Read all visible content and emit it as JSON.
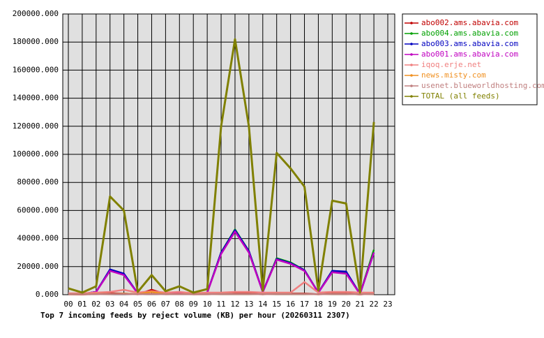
{
  "chart_data": {
    "type": "line",
    "title": "Top 7 incoming feeds by reject volume (KB) per hour (20260311 2307)",
    "categories": [
      "00",
      "01",
      "02",
      "03",
      "04",
      "05",
      "06",
      "07",
      "08",
      "09",
      "10",
      "11",
      "12",
      "13",
      "14",
      "15",
      "16",
      "17",
      "18",
      "19",
      "20",
      "21",
      "22",
      "23"
    ],
    "ylim": [
      0,
      200000
    ],
    "yticks": [
      {
        "value": 0,
        "label": "0.000"
      },
      {
        "value": 20000,
        "label": "20000.000"
      },
      {
        "value": 40000,
        "label": "40000.000"
      },
      {
        "value": 60000,
        "label": "60000.000"
      },
      {
        "value": 80000,
        "label": "80000.000"
      },
      {
        "value": 100000,
        "label": "100000.000"
      },
      {
        "value": 120000,
        "label": "120000.000"
      },
      {
        "value": 140000,
        "label": "140000.000"
      },
      {
        "value": 160000,
        "label": "160000.000"
      },
      {
        "value": 180000,
        "label": "180000.000"
      },
      {
        "value": 200000,
        "label": "200000.000"
      }
    ],
    "grid": true,
    "legend": "right",
    "series": [
      {
        "name": "abo002.ams.abavia.com",
        "color": "#c00000",
        "values": [
          300,
          200,
          500,
          1000,
          800,
          300,
          3500,
          500,
          1500,
          300,
          500,
          1000,
          1500,
          1000,
          300,
          1000,
          800,
          800,
          300,
          800,
          800,
          200,
          1000,
          null
        ]
      },
      {
        "name": "abo004.ams.abavia.com",
        "color": "#00a000",
        "values": [
          500,
          500,
          2000,
          17500,
          14500,
          1000,
          2000,
          500,
          1000,
          500,
          1500,
          30000,
          46500,
          31000,
          2000,
          26000,
          23000,
          17500,
          1500,
          17000,
          16000,
          500,
          32000,
          null
        ]
      },
      {
        "name": "abo003.ams.abavia.com",
        "color": "#0000c0",
        "values": [
          500,
          500,
          2000,
          18000,
          15000,
          1000,
          2000,
          500,
          1000,
          500,
          1500,
          30000,
          46000,
          31000,
          2000,
          25500,
          22500,
          17500,
          1500,
          17000,
          16500,
          500,
          30000,
          null
        ]
      },
      {
        "name": "abo001.ams.abavia.com",
        "color": "#c000c0",
        "values": [
          500,
          500,
          2000,
          17000,
          14000,
          1000,
          2000,
          500,
          1000,
          500,
          1500,
          29000,
          45000,
          30000,
          2000,
          25000,
          22000,
          17000,
          1500,
          16000,
          15000,
          500,
          30000,
          null
        ]
      },
      {
        "name": "iqoq.erje.net",
        "color": "#f08080",
        "values": [
          1000,
          1000,
          1500,
          2000,
          3500,
          1500,
          2500,
          1500,
          2000,
          1000,
          1500,
          1500,
          2000,
          2000,
          1500,
          1500,
          1500,
          9000,
          1500,
          2000,
          2000,
          1500,
          1500,
          null
        ]
      },
      {
        "name": "news.misty.com",
        "color": "#f09020",
        "values": [
          300,
          300,
          500,
          500,
          800,
          300,
          2000,
          300,
          500,
          300,
          300,
          500,
          500,
          500,
          300,
          500,
          500,
          500,
          300,
          500,
          500,
          300,
          500,
          null
        ]
      },
      {
        "name": "usenet.blueworldhosting.com",
        "color": "#c08080",
        "values": [
          300,
          300,
          300,
          500,
          500,
          300,
          500,
          300,
          300,
          300,
          300,
          500,
          500,
          500,
          300,
          500,
          500,
          500,
          300,
          500,
          500,
          300,
          500,
          null
        ]
      },
      {
        "name": "TOTAL (all feeds)",
        "color": "#808000",
        "values": [
          4500,
          1500,
          6000,
          70000,
          60000,
          2000,
          14000,
          2500,
          6000,
          1500,
          4000,
          120000,
          182000,
          120000,
          3000,
          101000,
          90000,
          77000,
          3000,
          67000,
          65000,
          1500,
          123000,
          null
        ]
      }
    ]
  }
}
